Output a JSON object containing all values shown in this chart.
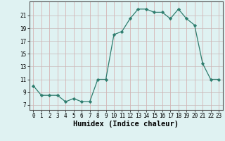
{
  "x": [
    0,
    1,
    2,
    3,
    4,
    5,
    6,
    7,
    8,
    9,
    10,
    11,
    12,
    13,
    14,
    15,
    16,
    17,
    18,
    19,
    20,
    21,
    22,
    23
  ],
  "y": [
    10,
    8.5,
    8.5,
    8.5,
    7.5,
    8,
    7.5,
    7.5,
    11,
    11,
    18,
    18.5,
    20.5,
    22,
    22,
    21.5,
    21.5,
    20.5,
    22,
    20.5,
    19.5,
    13.5,
    11,
    11
  ],
  "xlabel": "Humidex (Indice chaleur)",
  "line_color": "#2e7d6e",
  "marker": "D",
  "marker_size": 2.2,
  "bg_color": "#dff2f2",
  "grid_color_v": "#d4a8a8",
  "grid_color_h": "#c8b8b8",
  "yticks": [
    7,
    9,
    11,
    13,
    15,
    17,
    19,
    21
  ],
  "ylim": [
    6.2,
    23.2
  ],
  "xlim": [
    -0.5,
    23.5
  ],
  "xticks": [
    0,
    1,
    2,
    3,
    4,
    5,
    6,
    7,
    8,
    9,
    10,
    11,
    12,
    13,
    14,
    15,
    16,
    17,
    18,
    19,
    20,
    21,
    22,
    23
  ],
  "tick_fontsize": 5.5,
  "xlabel_fontsize": 7.5
}
